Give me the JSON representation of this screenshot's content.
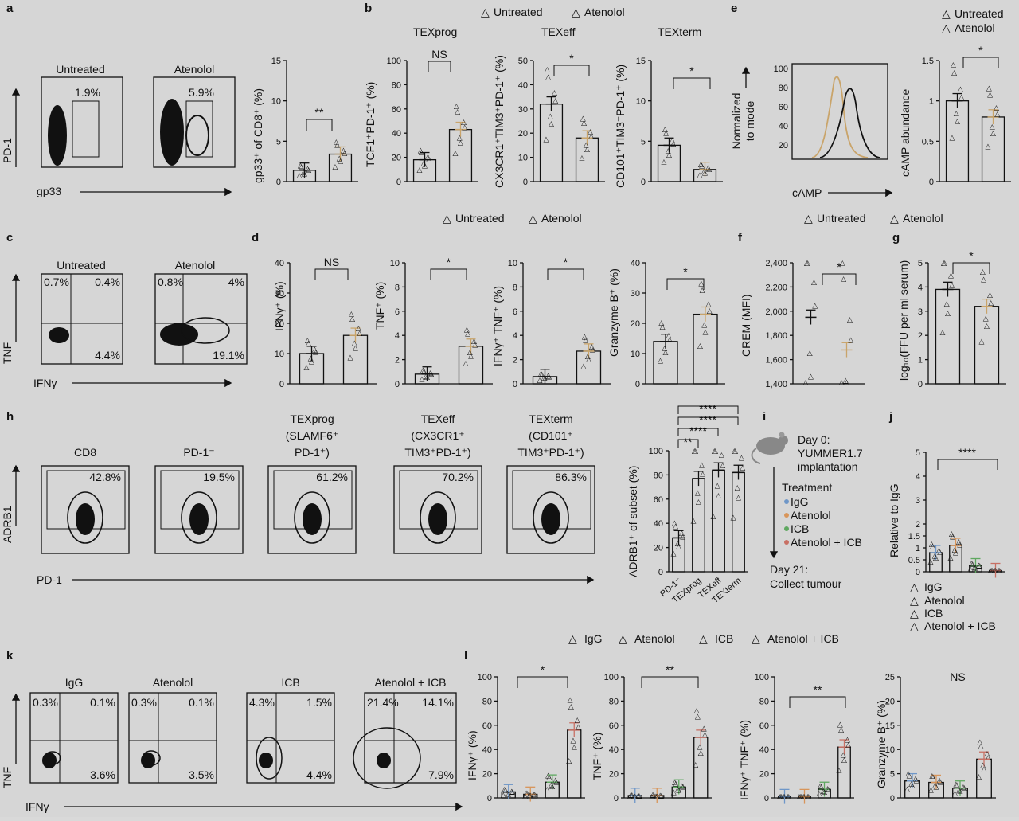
{
  "panels": {
    "a": {
      "label": "a",
      "flow": [
        {
          "title": "Untreated",
          "gate_pct": "1.9%"
        },
        {
          "title": "Atenolol",
          "gate_pct": "5.9%"
        }
      ],
      "x_label": "gp33",
      "y_label": "PD-1",
      "bar_ylabel": "gp33⁺ of CD8⁺ (%)",
      "sig": "**"
    },
    "b": {
      "label": "b",
      "legend": [
        "Untreated",
        "Atenolol"
      ],
      "titles": [
        "TEXprog",
        "TEXeff",
        "TEXterm"
      ],
      "ylabels": [
        "TCF1⁺PD-1⁺ (%)",
        "CX3CR1⁺TIM3⁺PD-1⁺ (%)",
        "CD101⁺TIM3⁺PD-1⁺ (%)"
      ],
      "sigs": [
        "NS",
        "*",
        "*"
      ]
    },
    "e": {
      "label": "e",
      "legend": [
        "Untreated",
        "Atenolol"
      ],
      "hist_ylabel_1": "Normalized",
      "hist_ylabel_2": "to mode",
      "hist_xlabel": "cAMP",
      "bar_ylabel": "cAMP abundance",
      "sig": "*"
    },
    "c": {
      "label": "c",
      "flow": [
        {
          "title": "Untreated",
          "q_ul": "0.7%",
          "q_ur": "0.4%",
          "q_lr": "4.4%"
        },
        {
          "title": "Atenolol",
          "q_ul": "0.8%",
          "q_ur": "4%",
          "q_lr": "19.1%"
        }
      ],
      "x_label": "IFNγ",
      "y_label": "TNF"
    },
    "d": {
      "label": "d",
      "legend": [
        "Untreated",
        "Atenolol"
      ],
      "ylabels": [
        "IFNγ⁺ (%)",
        "TNF⁺ (%)",
        "IFNγ⁺ TNF⁺ (%)",
        "Granzyme B⁺ (%)"
      ],
      "sigs": [
        "NS",
        "*",
        "*",
        "*"
      ]
    },
    "f": {
      "label": "f",
      "ylabel": "CREM (MFI)",
      "sig": "*"
    },
    "g": {
      "label": "g",
      "ylabel": "log₁₀(FFU per ml serum)",
      "sig": "*"
    },
    "h": {
      "label": "h",
      "flow": [
        {
          "title_1": "",
          "title_2": "",
          "title_3": "CD8",
          "pct": "42.8%"
        },
        {
          "title_1": "",
          "title_2": "",
          "title_3": "PD-1⁻",
          "pct": "19.5%"
        },
        {
          "title_1": "TEXprog",
          "title_2": "(SLAMF6⁺",
          "title_3": "PD-1⁺)",
          "pct": "61.2%"
        },
        {
          "title_1": "TEXeff",
          "title_2": "(CX3CR1⁺",
          "title_3": "TIM3⁺PD-1⁺)",
          "pct": "70.2%"
        },
        {
          "title_1": "TEXterm",
          "title_2": "(CD101⁺",
          "title_3": "TIM3⁺PD-1⁺)",
          "pct": "86.3%"
        }
      ],
      "x_label": "PD-1",
      "y_label": "ADRB1",
      "bar_ylabel": "ADRB1⁺ of subset (%)",
      "bar_categories": [
        "PD-1⁻",
        "TEXprog",
        "TEXeff",
        "TEXterm"
      ],
      "sigs": [
        "**",
        "****",
        "****",
        "****"
      ]
    },
    "i": {
      "label": "i",
      "day0_1": "Day 0:",
      "day0_2": "YUMMER1.7",
      "day0_3": "implantation",
      "treatment": "Treatment",
      "arms": [
        "IgG",
        "Atenolol",
        "ICB",
        "Atenolol + ICB"
      ],
      "day21_1": "Day 21:",
      "day21_2": "Collect tumour"
    },
    "j": {
      "label": "j",
      "ylabel": "Relative to IgG",
      "sig": "****",
      "legend": [
        "IgG",
        "Atenolol",
        "ICB",
        "Atenolol + ICB"
      ]
    },
    "k": {
      "label": "k",
      "flow": [
        {
          "title": "IgG",
          "q_ul": "0.3%",
          "q_ur": "0.1%",
          "q_lr": "3.6%"
        },
        {
          "title": "Atenolol",
          "q_ul": "0.3%",
          "q_ur": "0.1%",
          "q_lr": "3.5%"
        },
        {
          "title": "ICB",
          "q_ul": "4.3%",
          "q_ur": "1.5%",
          "q_lr": "4.4%"
        },
        {
          "title": "Atenolol + ICB",
          "q_ul": "21.4%",
          "q_ur": "14.1%",
          "q_lr": "7.9%"
        }
      ],
      "x_label": "IFNγ",
      "y_label": "TNF"
    },
    "l": {
      "label": "l",
      "legend": [
        "IgG",
        "Atenolol",
        "ICB",
        "Atenolol + ICB"
      ],
      "ylabels": [
        "IFNγ⁺ (%)",
        "TNF⁺ (%)",
        "IFNγ⁺ TNF⁺ (%)",
        "Granzyme B⁺ (%)"
      ],
      "sigs": [
        "*",
        "**",
        "**",
        "NS"
      ]
    }
  },
  "colors": {
    "untreated": "#111111",
    "atenolol": "#c9a46a",
    "igg": "#6f97c8",
    "atenolol_l": "#d8955a",
    "icb": "#5fa860",
    "combo": "#c87064"
  },
  "chart_data": [
    {
      "id": "a",
      "type": "bar",
      "categories": [
        "Untreated",
        "Atenolol"
      ],
      "values": [
        1.4,
        3.4
      ],
      "ylim": [
        0,
        15
      ],
      "yticks": [
        0,
        5,
        10,
        15
      ],
      "ylabel": "gp33⁺ of CD8⁺ (%)"
    },
    {
      "id": "b1",
      "type": "bar",
      "title": "TEXprog",
      "categories": [
        "Untreated",
        "Atenolol"
      ],
      "values": [
        18,
        43
      ],
      "ylim": [
        0,
        100
      ],
      "yticks": [
        0,
        20,
        40,
        60,
        80,
        100
      ],
      "ylabel": "TCF1⁺PD-1⁺ (%)"
    },
    {
      "id": "b2",
      "type": "bar",
      "title": "TEXeff",
      "categories": [
        "Untreated",
        "Atenolol"
      ],
      "values": [
        32,
        18
      ],
      "ylim": [
        0,
        50
      ],
      "yticks": [
        0,
        10,
        20,
        30,
        40,
        50
      ],
      "ylabel": "CX3CR1⁺TIM3⁺PD-1⁺ (%)"
    },
    {
      "id": "b3",
      "type": "bar",
      "title": "TEXterm",
      "categories": [
        "Untreated",
        "Atenolol"
      ],
      "values": [
        4.5,
        1.5
      ],
      "ylim": [
        0,
        15
      ],
      "yticks": [
        0,
        5,
        10,
        15
      ],
      "ylabel": "CD101⁺TIM3⁺PD-1⁺ (%)"
    },
    {
      "id": "e",
      "type": "bar",
      "categories": [
        "Untreated",
        "Atenolol"
      ],
      "values": [
        1.0,
        0.8
      ],
      "ylim": [
        0,
        1.5
      ],
      "yticks": [
        0,
        0.5,
        1.0,
        1.5
      ],
      "ylabel": "cAMP abundance"
    },
    {
      "id": "d1",
      "type": "bar",
      "categories": [
        "Untreated",
        "Atenolol"
      ],
      "values": [
        10,
        16
      ],
      "ylim": [
        0,
        40
      ],
      "yticks": [
        0,
        10,
        20,
        30,
        40
      ],
      "ylabel": "IFNγ⁺ (%)"
    },
    {
      "id": "d2",
      "type": "bar",
      "categories": [
        "Untreated",
        "Atenolol"
      ],
      "values": [
        0.8,
        3.1
      ],
      "ylim": [
        0,
        10
      ],
      "yticks": [
        0,
        2,
        4,
        6,
        8,
        10
      ],
      "ylabel": "TNF⁺ (%)"
    },
    {
      "id": "d3",
      "type": "bar",
      "categories": [
        "Untreated",
        "Atenolol"
      ],
      "values": [
        0.6,
        2.7
      ],
      "ylim": [
        0,
        10
      ],
      "yticks": [
        0,
        2,
        4,
        6,
        8,
        10
      ],
      "ylabel": "IFNγ⁺ TNF⁺ (%)"
    },
    {
      "id": "d4",
      "type": "bar",
      "categories": [
        "Untreated",
        "Atenolol"
      ],
      "values": [
        14,
        23
      ],
      "ylim": [
        0,
        40
      ],
      "yticks": [
        0,
        10,
        20,
        30,
        40
      ],
      "ylabel": "Granzyme B⁺ (%)"
    },
    {
      "id": "f",
      "type": "scatter",
      "categories": [
        "Untreated",
        "Atenolol"
      ],
      "values": [
        1950,
        1680
      ],
      "ylim": [
        1400,
        2400
      ],
      "yticks": [
        1400,
        1600,
        1800,
        2000,
        2200,
        2400
      ],
      "ylabel": "CREM (MFI)"
    },
    {
      "id": "g",
      "type": "bar",
      "categories": [
        "Untreated",
        "Atenolol"
      ],
      "values": [
        3.9,
        3.2
      ],
      "ylim": [
        0,
        5
      ],
      "yticks": [
        0,
        1,
        2,
        3,
        4,
        5
      ],
      "ylabel": "log₁₀(FFU per ml serum)"
    },
    {
      "id": "h",
      "type": "bar",
      "categories": [
        "PD-1⁻",
        "TEXprog",
        "TEXeff",
        "TEXterm"
      ],
      "values": [
        28,
        77,
        84,
        82
      ],
      "ylim": [
        0,
        100
      ],
      "yticks": [
        0,
        20,
        40,
        60,
        80,
        100
      ],
      "ylabel": "ADRB1⁺ of subset (%)"
    },
    {
      "id": "j",
      "type": "bar",
      "categories": [
        "IgG",
        "Atenolol",
        "ICB",
        "Atenolol + ICB"
      ],
      "values": [
        0.8,
        1.1,
        0.25,
        0.05
      ],
      "ylim": [
        0,
        5
      ],
      "yticks": [
        0,
        0.5,
        1.0,
        1.5,
        2.0,
        3,
        4,
        5
      ],
      "ylabel": "Relative to IgG"
    },
    {
      "id": "l1",
      "type": "bar",
      "categories": [
        "IgG",
        "Atenolol",
        "ICB",
        "Atenolol + ICB"
      ],
      "values": [
        5,
        3,
        13,
        56
      ],
      "ylim": [
        0,
        100
      ],
      "yticks": [
        0,
        20,
        40,
        60,
        80,
        100
      ],
      "ylabel": "IFNγ⁺ (%)"
    },
    {
      "id": "l2",
      "type": "bar",
      "categories": [
        "IgG",
        "Atenolol",
        "ICB",
        "Atenolol + ICB"
      ],
      "values": [
        2,
        2,
        9,
        50
      ],
      "ylim": [
        0,
        100
      ],
      "yticks": [
        0,
        20,
        40,
        60,
        80,
        100
      ],
      "ylabel": "TNF⁺ (%)"
    },
    {
      "id": "l3",
      "type": "bar",
      "categories": [
        "IgG",
        "Atenolol",
        "ICB",
        "Atenolol + ICB"
      ],
      "values": [
        1,
        1,
        7,
        42
      ],
      "ylim": [
        0,
        100
      ],
      "yticks": [
        0,
        20,
        40,
        60,
        80,
        100
      ],
      "ylabel": "IFNγ⁺ TNF⁺ (%)"
    },
    {
      "id": "l4",
      "type": "bar",
      "categories": [
        "IgG",
        "Atenolol",
        "ICB",
        "Atenolol + ICB"
      ],
      "values": [
        3.5,
        3.2,
        2,
        8
      ],
      "ylim": [
        0,
        25
      ],
      "yticks": [
        0,
        5,
        10,
        15,
        20,
        25
      ],
      "ylabel": "Granzyme B⁺ (%)"
    }
  ]
}
